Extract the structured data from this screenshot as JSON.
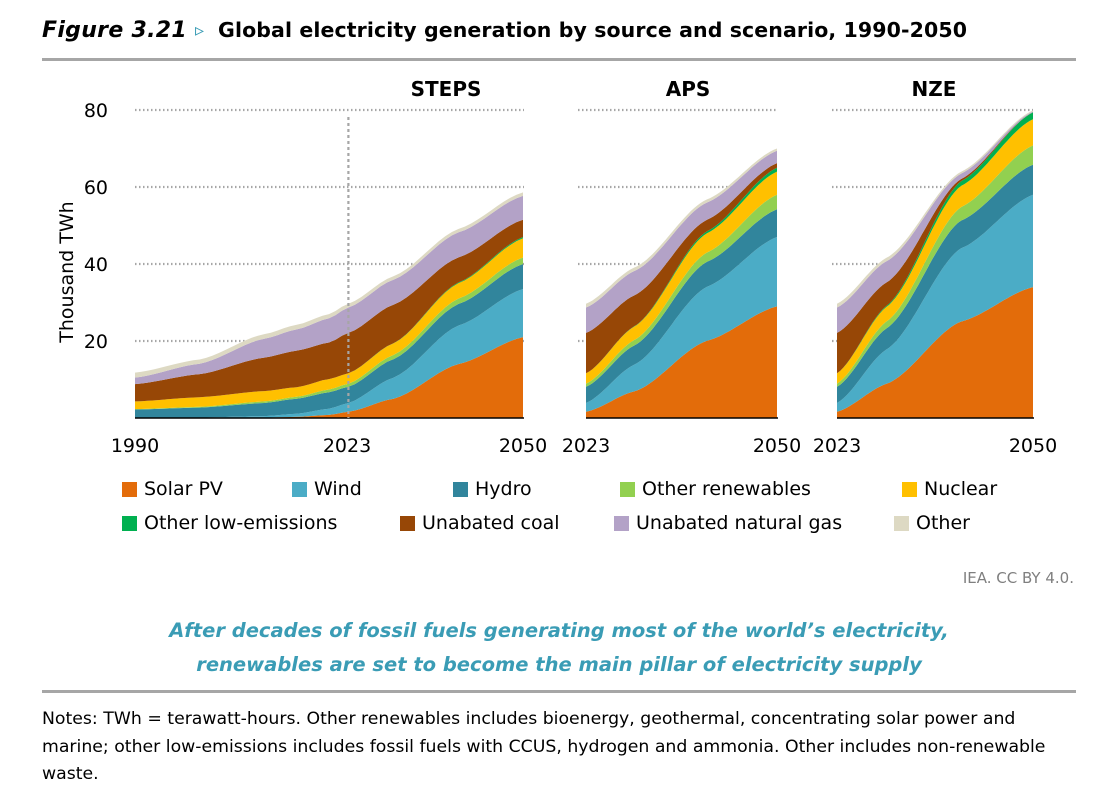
{
  "figure": {
    "label": "Figure 3.21",
    "arrow": "▹",
    "title": "Global electricity generation by source and scenario, 1990-2050"
  },
  "source": "IEA. CC BY 4.0.",
  "message": [
    "After decades of fossil fuels generating most of the world’s electricity,",
    "renewables are set to become the main pillar of electricity supply"
  ],
  "notes": "Notes: TWh = terawatt-hours. Other renewables includes bioenergy, geothermal, concentrating solar power and marine; other low-emissions includes fossil fuels with CCUS, hydrogen and ammonia. Other includes non-renewable waste.",
  "legend": [
    {
      "name": "Solar PV",
      "color": "#e36c0a"
    },
    {
      "name": "Wind",
      "color": "#4bacc6"
    },
    {
      "name": "Hydro",
      "color": "#31859c"
    },
    {
      "name": "Other renewables",
      "color": "#92d050"
    },
    {
      "name": "Nuclear",
      "color": "#ffc000"
    },
    {
      "name": "Other low-emissions",
      "color": "#00b050"
    },
    {
      "name": "Unabated coal",
      "color": "#974706"
    },
    {
      "name": "Unabated natural gas",
      "color": "#b3a2c7"
    },
    {
      "name": "Other",
      "color": "#ddd9c3"
    }
  ],
  "chart_data": [
    {
      "type": "area",
      "title": "STEPS",
      "ylabel": "Thousand TWh",
      "ylim": [
        0,
        80
      ],
      "yticks": [
        20,
        40,
        60,
        80
      ],
      "x": [
        1990,
        2000,
        2010,
        2015,
        2020,
        2023,
        2030,
        2040,
        2050
      ],
      "xticklabels": [
        "1990",
        "2023",
        "2050"
      ],
      "grid": "dotted",
      "marker_line_x": 2023,
      "series": [
        {
          "name": "Solar PV",
          "values": [
            0,
            0,
            0.1,
            0.3,
            0.8,
            1.6,
            5,
            14,
            21
          ]
        },
        {
          "name": "Wind",
          "values": [
            0,
            0.1,
            0.4,
            0.8,
            1.6,
            2.3,
            5.5,
            10,
            12.5
          ]
        },
        {
          "name": "Hydro",
          "values": [
            2.2,
            2.6,
            3.4,
            3.9,
            4.3,
            4.2,
            4.8,
            5.6,
            6.5
          ]
        },
        {
          "name": "Other renewables",
          "values": [
            0.1,
            0.2,
            0.4,
            0.5,
            0.7,
            0.8,
            1.1,
            1.4,
            1.7
          ]
        },
        {
          "name": "Nuclear",
          "values": [
            2,
            2.5,
            2.7,
            2.5,
            2.7,
            2.7,
            3,
            4,
            5
          ]
        },
        {
          "name": "Other low-emissions",
          "values": [
            0,
            0,
            0,
            0,
            0,
            0,
            0.05,
            0.2,
            0.3
          ]
        },
        {
          "name": "Unabated coal",
          "values": [
            4.5,
            6,
            8.7,
            9.5,
            9.5,
            10.5,
            10,
            6.5,
            4.5
          ]
        },
        {
          "name": "Unabated natural gas",
          "values": [
            1.7,
            2.7,
            4.9,
            5.5,
            6.3,
            6.6,
            6.5,
            6.5,
            6.2
          ]
        },
        {
          "name": "Other",
          "values": [
            1.3,
            1.1,
            1.2,
            1.2,
            1.1,
            1,
            0.9,
            0.9,
            0.9
          ]
        }
      ]
    },
    {
      "type": "area",
      "title": "APS",
      "ylim": [
        0,
        80
      ],
      "x": [
        2023,
        2030,
        2040,
        2050
      ],
      "xticklabels": [
        "2023",
        "2050"
      ],
      "grid": "dotted",
      "series": [
        {
          "name": "Solar PV",
          "values": [
            1.6,
            7,
            20,
            29
          ]
        },
        {
          "name": "Wind",
          "values": [
            2.3,
            7,
            14,
            18
          ]
        },
        {
          "name": "Hydro",
          "values": [
            4.2,
            5,
            6.5,
            7.2
          ]
        },
        {
          "name": "Other renewables",
          "values": [
            0.8,
            1.4,
            2.4,
            3.8
          ]
        },
        {
          "name": "Nuclear",
          "values": [
            2.7,
            3.5,
            5,
            6
          ]
        },
        {
          "name": "Other low-emissions",
          "values": [
            0,
            0.1,
            0.5,
            1
          ]
        },
        {
          "name": "Unabated coal",
          "values": [
            10.5,
            8,
            3,
            1.2
          ]
        },
        {
          "name": "Unabated natural gas",
          "values": [
            6.6,
            6.3,
            4.5,
            3.2
          ]
        },
        {
          "name": "Other",
          "values": [
            1,
            0.9,
            0.8,
            0.6
          ]
        }
      ]
    },
    {
      "type": "area",
      "title": "NZE",
      "ylim": [
        0,
        80
      ],
      "x": [
        2023,
        2030,
        2040,
        2050
      ],
      "xticklabels": [
        "2023",
        "2050"
      ],
      "grid": "dotted",
      "series": [
        {
          "name": "Solar PV",
          "values": [
            1.6,
            9,
            25,
            34
          ]
        },
        {
          "name": "Wind",
          "values": [
            2.3,
            9,
            19,
            24
          ]
        },
        {
          "name": "Hydro",
          "values": [
            4.2,
            5.5,
            7.2,
            7.8
          ]
        },
        {
          "name": "Other renewables",
          "values": [
            0.8,
            1.8,
            3.5,
            5
          ]
        },
        {
          "name": "Nuclear",
          "values": [
            2.7,
            3.8,
            5.5,
            6.8
          ]
        },
        {
          "name": "Other low-emissions",
          "values": [
            0,
            0.3,
            1.2,
            1.8
          ]
        },
        {
          "name": "Unabated coal",
          "values": [
            10.5,
            6,
            0.6,
            0
          ]
        },
        {
          "name": "Unabated natural gas",
          "values": [
            6.6,
            5.5,
            1.4,
            0.2
          ]
        },
        {
          "name": "Other",
          "values": [
            1,
            0.9,
            0.5,
            0.3
          ]
        }
      ]
    }
  ]
}
